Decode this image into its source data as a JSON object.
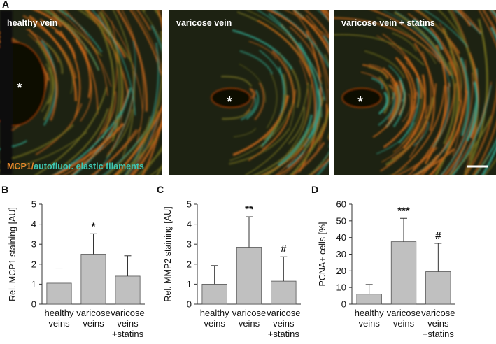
{
  "panel_a": {
    "label": "A",
    "images": [
      {
        "label": "healthy vein",
        "marker": "*"
      },
      {
        "label": "varicose vein",
        "marker": "*"
      },
      {
        "label": "varicose vein + statins",
        "marker": "*"
      }
    ],
    "legend": {
      "stain": "MCP1/",
      "rest": "autofluor. elastic filaments"
    }
  },
  "chart_data": [
    {
      "type": "bar",
      "panel": "B",
      "ylabel": "Rel. MCP1 staining [AU]",
      "categories": [
        "healthy veins",
        "varicose veins",
        "varicose veins +statins"
      ],
      "values": [
        1.05,
        2.5,
        1.4
      ],
      "errors": [
        0.75,
        1.02,
        1.02
      ],
      "annotations": [
        null,
        "*",
        null
      ],
      "color": "#c0c0c0",
      "ylim": [
        0,
        5
      ],
      "yticks": [
        0,
        1,
        2,
        3,
        4,
        5
      ]
    },
    {
      "type": "bar",
      "panel": "C",
      "ylabel": "Rel. MMP2 staining [AU]",
      "categories": [
        "healthy veins",
        "varicose veins",
        "varicose veins +statins"
      ],
      "values": [
        1.0,
        2.85,
        1.15
      ],
      "errors": [
        0.93,
        1.52,
        1.22
      ],
      "annotations": [
        null,
        "**",
        "#"
      ],
      "color": "#c0c0c0",
      "ylim": [
        0,
        5
      ],
      "yticks": [
        0,
        1,
        2,
        3,
        4,
        5
      ]
    },
    {
      "type": "bar",
      "panel": "D",
      "ylabel": "PCNA+ cells [%]",
      "categories": [
        "healthy veins",
        "varicose veins",
        "varicose veins +statins"
      ],
      "values": [
        6,
        37.5,
        19.5
      ],
      "errors": [
        5.8,
        14,
        17
      ],
      "annotations": [
        null,
        "***",
        "#"
      ],
      "color": "#c0c0c0",
      "ylim": [
        0,
        60
      ],
      "yticks": [
        0,
        10,
        20,
        30,
        40,
        50,
        60
      ]
    }
  ]
}
